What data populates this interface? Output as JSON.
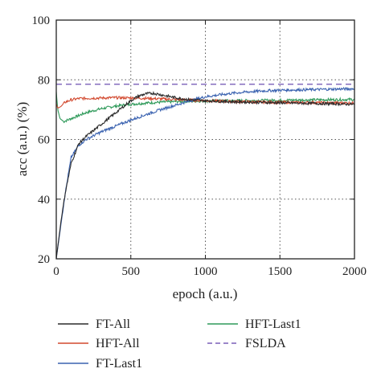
{
  "chart_data": {
    "type": "line",
    "xlabel": "epoch (a.u.)",
    "ylabel": "acc (a.u.) (%)",
    "xlim": [
      0,
      2000
    ],
    "ylim": [
      20,
      100
    ],
    "xticks": [
      0,
      500,
      1000,
      1500,
      2000
    ],
    "yticks": [
      20,
      40,
      60,
      80,
      100
    ],
    "xtick_labels": [
      "0",
      "500",
      "1000",
      "1500",
      "2000"
    ],
    "ytick_labels": [
      "20",
      "40",
      "60",
      "80",
      "100"
    ],
    "grid": "dotted",
    "legend_position": "below",
    "series": [
      {
        "name": "FT-All",
        "color": "#2b2b2b",
        "style": "solid",
        "x": [
          0,
          30,
          60,
          100,
          150,
          200,
          250,
          300,
          350,
          400,
          450,
          500,
          550,
          600,
          650,
          700,
          750,
          800,
          900,
          1000,
          1100,
          1200,
          1300,
          1400,
          1500,
          1600,
          1700,
          1800,
          1900,
          2000
        ],
        "y": [
          20,
          32,
          42,
          52,
          58.5,
          61,
          63,
          65,
          67,
          69,
          71,
          73,
          74.5,
          75.3,
          75.5,
          75,
          74.5,
          74,
          73.3,
          73,
          72.8,
          72.6,
          72.5,
          72.4,
          72.3,
          72.2,
          72.1,
          72,
          71.9,
          71.8
        ]
      },
      {
        "name": "HFT-All",
        "color": "#d2492f",
        "style": "solid",
        "x": [
          0,
          10,
          30,
          60,
          100,
          150,
          200,
          300,
          400,
          500,
          600,
          700,
          800,
          900,
          1000,
          1200,
          1400,
          1600,
          1800,
          2000
        ],
        "y": [
          72,
          70.5,
          71,
          72.5,
          73.3,
          73.7,
          73.8,
          73.9,
          74,
          73.9,
          73.8,
          73.6,
          73.4,
          73.2,
          73,
          72.7,
          72.5,
          72.4,
          72.3,
          72.2
        ]
      },
      {
        "name": "FT-Last1",
        "color": "#3a62b0",
        "style": "solid",
        "x": [
          0,
          30,
          60,
          100,
          150,
          200,
          300,
          400,
          500,
          600,
          700,
          800,
          900,
          1000,
          1100,
          1200,
          1300,
          1400,
          1500,
          1600,
          1700,
          1800,
          1900,
          2000
        ],
        "y": [
          20,
          31,
          42,
          54,
          58,
          60,
          62.5,
          64.5,
          66.5,
          68.3,
          70,
          71.5,
          73,
          74.3,
          75,
          75.6,
          76,
          76.3,
          76.5,
          76.6,
          76.7,
          76.8,
          76.9,
          77
        ]
      },
      {
        "name": "HFT-Last1",
        "color": "#2f9a5a",
        "style": "solid",
        "x": [
          0,
          10,
          25,
          50,
          100,
          150,
          200,
          300,
          400,
          500,
          600,
          700,
          800,
          900,
          1000,
          1200,
          1400,
          1600,
          1800,
          2000
        ],
        "y": [
          76,
          70,
          67,
          66,
          67,
          68,
          69,
          70.3,
          71.2,
          71.8,
          72.2,
          72.5,
          72.7,
          72.8,
          72.9,
          73,
          73.1,
          73.2,
          73.3,
          73.4
        ]
      },
      {
        "name": "FSLDA",
        "color": "#7a5fb8",
        "style": "dashed",
        "x": [
          0,
          2000
        ],
        "y": [
          78.5,
          78.5
        ]
      }
    ]
  }
}
